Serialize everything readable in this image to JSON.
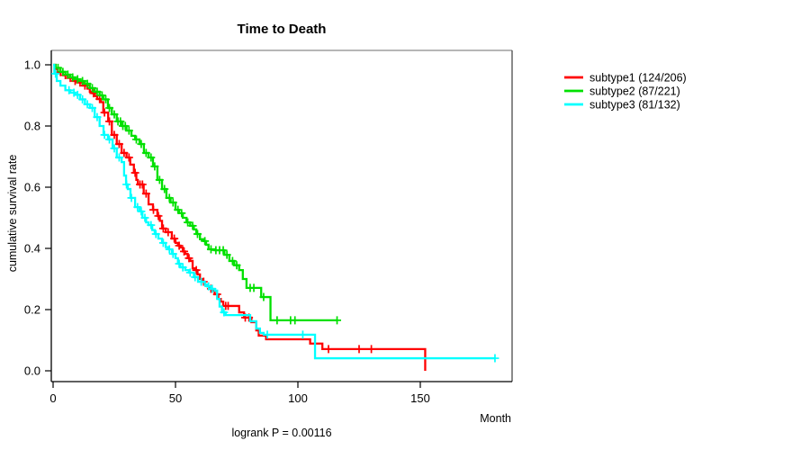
{
  "title": "Time to Death",
  "y_axis": {
    "label": "cumulative survival rate"
  },
  "x_axis": {
    "label": "Month"
  },
  "footnote": "logrank P = 0.00116",
  "chart_data": {
    "type": "line",
    "variant": "kaplan_meier_step",
    "title": "Time to Death",
    "xlabel": "Month",
    "ylabel": "cumulative survival rate",
    "xlim": [
      0,
      187
    ],
    "ylim": [
      0.0,
      1.0
    ],
    "grid": false,
    "legend_position": "right-outside",
    "annotation": "logrank P = 0.00116",
    "x_ticks": [
      {
        "value": 0,
        "label": "0"
      },
      {
        "value": 50,
        "label": "50"
      },
      {
        "value": 100,
        "label": "100"
      },
      {
        "value": 150,
        "label": "150"
      }
    ],
    "y_ticks": [
      {
        "value": 0.0,
        "label": "0.0"
      },
      {
        "value": 0.2,
        "label": "0.2"
      },
      {
        "value": 0.4,
        "label": "0.4"
      },
      {
        "value": 0.6,
        "label": "0.6"
      },
      {
        "value": 0.8,
        "label": "0.8"
      },
      {
        "value": 1.0,
        "label": "1.0"
      }
    ],
    "series": [
      {
        "name": "subtype1",
        "legend_label": "subtype1 (124/206)",
        "events": 124,
        "n": 206,
        "color": "#ff0000",
        "points": [
          [
            0,
            1.0
          ],
          [
            1,
            0.985
          ],
          [
            2,
            0.976
          ],
          [
            4,
            0.966
          ],
          [
            6,
            0.957
          ],
          [
            8,
            0.947
          ],
          [
            10,
            0.942
          ],
          [
            12,
            0.932
          ],
          [
            14,
            0.922
          ],
          [
            15,
            0.912
          ],
          [
            16,
            0.907
          ],
          [
            17,
            0.898
          ],
          [
            18,
            0.888
          ],
          [
            19.5,
            0.878
          ],
          [
            20.5,
            0.844
          ],
          [
            22.5,
            0.815
          ],
          [
            24,
            0.771
          ],
          [
            26,
            0.741
          ],
          [
            28,
            0.712
          ],
          [
            30,
            0.697
          ],
          [
            31.5,
            0.674
          ],
          [
            33,
            0.647
          ],
          [
            34,
            0.624
          ],
          [
            34.6,
            0.609
          ],
          [
            37,
            0.579
          ],
          [
            39,
            0.544
          ],
          [
            40.8,
            0.526
          ],
          [
            42.6,
            0.506
          ],
          [
            43.6,
            0.49
          ],
          [
            44.5,
            0.465
          ],
          [
            46,
            0.453
          ],
          [
            48.5,
            0.432
          ],
          [
            50,
            0.418
          ],
          [
            51,
            0.409
          ],
          [
            52,
            0.403
          ],
          [
            53,
            0.39
          ],
          [
            54,
            0.382
          ],
          [
            55,
            0.368
          ],
          [
            56,
            0.359
          ],
          [
            57,
            0.335
          ],
          [
            58,
            0.329
          ],
          [
            59,
            0.315
          ],
          [
            60,
            0.3
          ],
          [
            61,
            0.291
          ],
          [
            62,
            0.282
          ],
          [
            63,
            0.276
          ],
          [
            64,
            0.268
          ],
          [
            65,
            0.262
          ],
          [
            66,
            0.25
          ],
          [
            67.5,
            0.235
          ],
          [
            68.5,
            0.226
          ],
          [
            69.5,
            0.212
          ],
          [
            76,
            0.191
          ],
          [
            78,
            0.174
          ],
          [
            81,
            0.159
          ],
          [
            83,
            0.132
          ],
          [
            84,
            0.115
          ],
          [
            87,
            0.103
          ],
          [
            105,
            0.089
          ],
          [
            110,
            0.071
          ],
          [
            152,
            0.0
          ]
        ],
        "end_month": 152,
        "censor_months": [
          3,
          5,
          7,
          9,
          11,
          13,
          16.5,
          19,
          21,
          23,
          25,
          27,
          29,
          31,
          33.5,
          35.5,
          36.5,
          38,
          41,
          43,
          45,
          47,
          49.5,
          51.5,
          53.5,
          55.5,
          58.5,
          61.5,
          64.5,
          67,
          70.5,
          71.5,
          78.5,
          80,
          112.5,
          125,
          130
        ]
      },
      {
        "name": "subtype2",
        "legend_label": "subtype2 (87/221)",
        "events": 87,
        "n": 221,
        "color": "#00e000",
        "points": [
          [
            0,
            1.0
          ],
          [
            1,
            0.99
          ],
          [
            3,
            0.977
          ],
          [
            5,
            0.968
          ],
          [
            7,
            0.959
          ],
          [
            9,
            0.953
          ],
          [
            11,
            0.947
          ],
          [
            13,
            0.938
          ],
          [
            15,
            0.924
          ],
          [
            17,
            0.912
          ],
          [
            19,
            0.9
          ],
          [
            20.5,
            0.887
          ],
          [
            22.4,
            0.859
          ],
          [
            24,
            0.838
          ],
          [
            26,
            0.815
          ],
          [
            28,
            0.8
          ],
          [
            30,
            0.785
          ],
          [
            32,
            0.768
          ],
          [
            33.5,
            0.756
          ],
          [
            35.3,
            0.741
          ],
          [
            37.1,
            0.712
          ],
          [
            39,
            0.697
          ],
          [
            40.8,
            0.668
          ],
          [
            42.6,
            0.624
          ],
          [
            44.5,
            0.594
          ],
          [
            46.3,
            0.565
          ],
          [
            48,
            0.55
          ],
          [
            50,
            0.526
          ],
          [
            51.5,
            0.515
          ],
          [
            53,
            0.5
          ],
          [
            54.5,
            0.485
          ],
          [
            56,
            0.474
          ],
          [
            57.5,
            0.462
          ],
          [
            58.5,
            0.447
          ],
          [
            60,
            0.43
          ],
          [
            61.5,
            0.424
          ],
          [
            62.5,
            0.412
          ],
          [
            63.5,
            0.397
          ],
          [
            66,
            0.394
          ],
          [
            70,
            0.379
          ],
          [
            72,
            0.359
          ],
          [
            74,
            0.345
          ],
          [
            76,
            0.329
          ],
          [
            77.5,
            0.3
          ],
          [
            79,
            0.271
          ],
          [
            85,
            0.241
          ],
          [
            88.8,
            0.165
          ]
        ],
        "end_month": 116,
        "censor_months": [
          2,
          4,
          6,
          8,
          10,
          12,
          14,
          16,
          18,
          20,
          21.5,
          23,
          25,
          26.5,
          27.5,
          28.5,
          29.5,
          31,
          34,
          36,
          38,
          40,
          41.5,
          43.5,
          45.5,
          47.5,
          49,
          51,
          52.5,
          55,
          57,
          59,
          62,
          64.5,
          66.5,
          68,
          69.5,
          71,
          73.3,
          75,
          80.5,
          82,
          86,
          91.5,
          97,
          98.8,
          116
        ]
      },
      {
        "name": "subtype3",
        "legend_label": "subtype3 (81/132)",
        "events": 81,
        "n": 132,
        "color": "#00ffff",
        "points": [
          [
            0,
            1.0
          ],
          [
            0.5,
            0.971
          ],
          [
            1.5,
            0.947
          ],
          [
            3,
            0.932
          ],
          [
            5,
            0.917
          ],
          [
            7,
            0.909
          ],
          [
            9,
            0.902
          ],
          [
            11,
            0.887
          ],
          [
            13,
            0.871
          ],
          [
            15,
            0.859
          ],
          [
            17,
            0.829
          ],
          [
            19,
            0.8
          ],
          [
            20.6,
            0.771
          ],
          [
            22.4,
            0.756
          ],
          [
            24.3,
            0.727
          ],
          [
            26,
            0.697
          ],
          [
            28,
            0.682
          ],
          [
            29,
            0.638
          ],
          [
            29.8,
            0.609
          ],
          [
            30.5,
            0.594
          ],
          [
            31.6,
            0.565
          ],
          [
            33.5,
            0.535
          ],
          [
            35.3,
            0.521
          ],
          [
            36.5,
            0.5
          ],
          [
            38,
            0.485
          ],
          [
            39,
            0.476
          ],
          [
            40.5,
            0.46
          ],
          [
            41.5,
            0.447
          ],
          [
            43,
            0.432
          ],
          [
            44.5,
            0.418
          ],
          [
            46,
            0.404
          ],
          [
            47,
            0.397
          ],
          [
            48.5,
            0.382
          ],
          [
            50,
            0.368
          ],
          [
            51,
            0.35
          ],
          [
            52,
            0.338
          ],
          [
            54,
            0.329
          ],
          [
            55.5,
            0.321
          ],
          [
            57.5,
            0.306
          ],
          [
            59.2,
            0.291
          ],
          [
            62,
            0.282
          ],
          [
            63,
            0.276
          ],
          [
            64.5,
            0.268
          ],
          [
            66,
            0.262
          ],
          [
            67,
            0.235
          ],
          [
            68,
            0.21
          ],
          [
            69,
            0.191
          ],
          [
            70.5,
            0.182
          ],
          [
            80.5,
            0.162
          ],
          [
            83,
            0.138
          ],
          [
            84.5,
            0.124
          ],
          [
            86,
            0.118
          ],
          [
            107,
            0.041
          ]
        ],
        "end_month": 180.5,
        "censor_months": [
          1,
          6.5,
          8.5,
          10,
          12,
          14,
          16,
          18,
          21,
          23,
          25,
          27,
          30,
          32,
          34.5,
          36,
          37.5,
          40,
          42,
          45,
          47.5,
          49,
          51.5,
          53,
          56,
          58,
          60.5,
          63.5,
          65,
          69.8,
          87.5,
          102,
          180.5
        ]
      }
    ]
  }
}
